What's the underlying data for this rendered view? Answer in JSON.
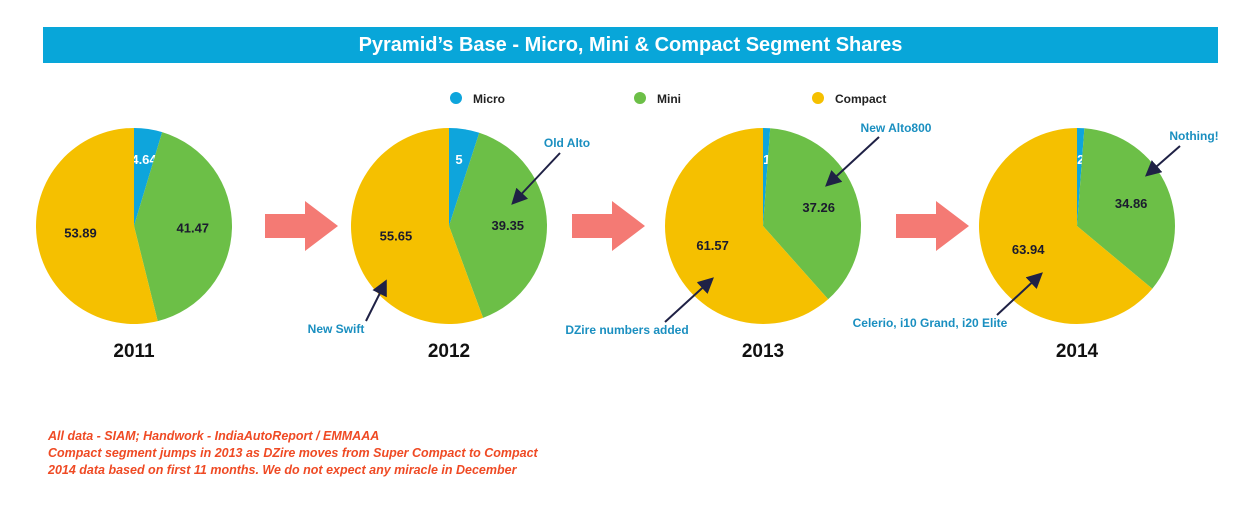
{
  "title": "Pyramid’s Base - Micro, Mini & Compact Segment Shares",
  "colors": {
    "Micro": "#0ea5dc",
    "Mini": "#6cbf47",
    "Compact": "#f5c000",
    "arrow": "#f47a74",
    "annotation_text": "#1a8fc0",
    "annotation_arrow": "#1f2145",
    "notes": "#ef4a24"
  },
  "chart_data": {
    "type": "pie",
    "legend": [
      "Micro",
      "Mini",
      "Compact"
    ],
    "legend_position": "top",
    "charts": [
      {
        "year": "2011",
        "slices": [
          {
            "name": "Micro",
            "value": 4.64,
            "label": "4.64"
          },
          {
            "name": "Mini",
            "value": 41.47,
            "label": "41.47"
          },
          {
            "name": "Compact",
            "value": 53.89,
            "label": "53.89"
          }
        ],
        "annotations": []
      },
      {
        "year": "2012",
        "slices": [
          {
            "name": "Micro",
            "value": 5,
            "label": "5"
          },
          {
            "name": "Mini",
            "value": 39.35,
            "label": "39.35"
          },
          {
            "name": "Compact",
            "value": 55.65,
            "label": "55.65"
          }
        ],
        "annotations": [
          "Old Alto",
          "New Swift"
        ]
      },
      {
        "year": "2013",
        "slices": [
          {
            "name": "Micro",
            "value": 1.17,
            "label": "1.17"
          },
          {
            "name": "Mini",
            "value": 37.26,
            "label": "37.26"
          },
          {
            "name": "Compact",
            "value": 61.57,
            "label": "61.57"
          }
        ],
        "annotations": [
          "New Alto800",
          "DZire numbers added"
        ]
      },
      {
        "year": "2014",
        "slices": [
          {
            "name": "Micro",
            "value": 1.2,
            "label": "1.20"
          },
          {
            "name": "Mini",
            "value": 34.86,
            "label": "34.86"
          },
          {
            "name": "Compact",
            "value": 63.94,
            "label": "63.94"
          }
        ],
        "annotations": [
          "Nothing!",
          "Celerio, i10 Grand, i20 Elite"
        ]
      }
    ]
  },
  "notes": [
    "All data - SIAM; Handwork - IndiaAutoReport / EMMAAA",
    "Compact segment jumps in 2013 as DZire moves from Super Compact to Compact",
    "2014 data based on first 11 months. We do not expect any miracle in December"
  ]
}
